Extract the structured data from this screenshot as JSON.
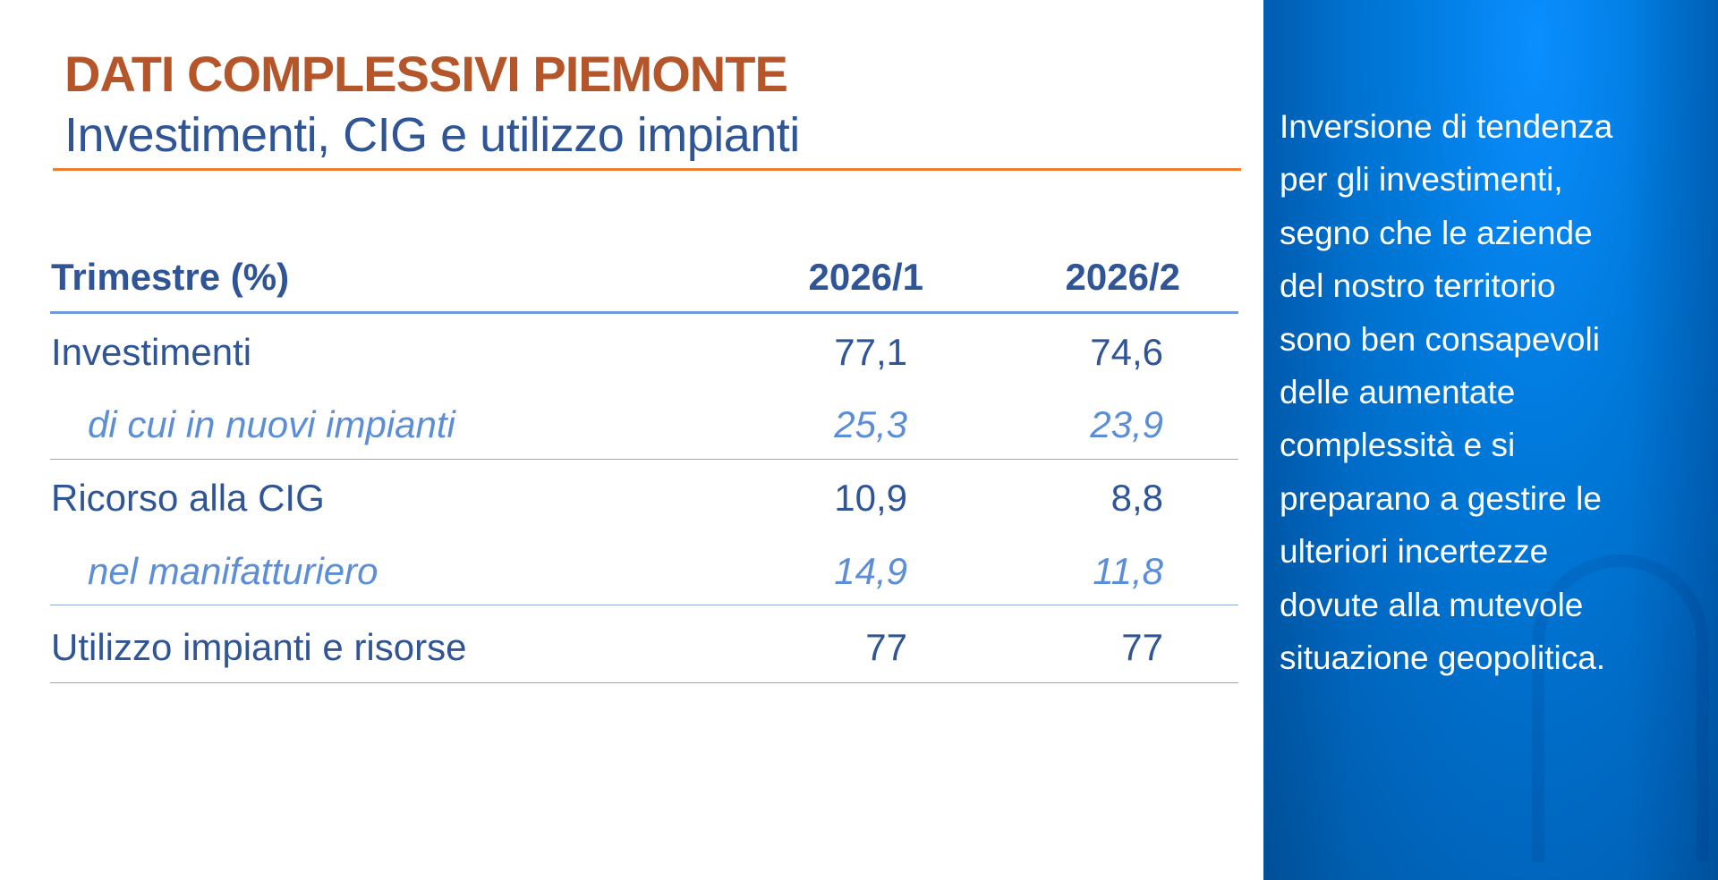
{
  "header": {
    "title": "DATI COMPLESSIVI PIEMONTE",
    "subtitle": "Investimenti, CIG e utilizzo impianti"
  },
  "table": {
    "headers": [
      "Trimestre (%)",
      "2026/1",
      "2026/2"
    ],
    "rows": [
      {
        "label": "Investimenti",
        "values": [
          "77,1",
          "74,6"
        ],
        "sub": false
      },
      {
        "label": "di cui in nuovi impianti",
        "values": [
          "25,3",
          "23,9"
        ],
        "sub": true
      },
      {
        "label": "Ricorso alla CIG",
        "values": [
          "10,9",
          "8,8"
        ],
        "sub": false
      },
      {
        "label": "nel manifatturiero",
        "values": [
          "14,9",
          "11,8"
        ],
        "sub": true
      },
      {
        "label": "Utilizzo impianti e risorse",
        "values": [
          "77",
          "77"
        ],
        "sub": false
      }
    ]
  },
  "side_panel": {
    "text": "Inversione di tendenza\nper gli investimenti,\nsegno che le aziende\ndel nostro territorio\nsono  ben consapevoli\ndelle aumentate\ncomplessità e si\npreparano a gestire le\nulteriori incertezze\ndovute alla mutevole\nsituazione geopolitica."
  },
  "colors": {
    "title": "#B5552A",
    "text": "#2F5597",
    "sub_text": "#5B8ED6",
    "accent_rule": "#ED7D31",
    "panel": "#0079DA"
  }
}
